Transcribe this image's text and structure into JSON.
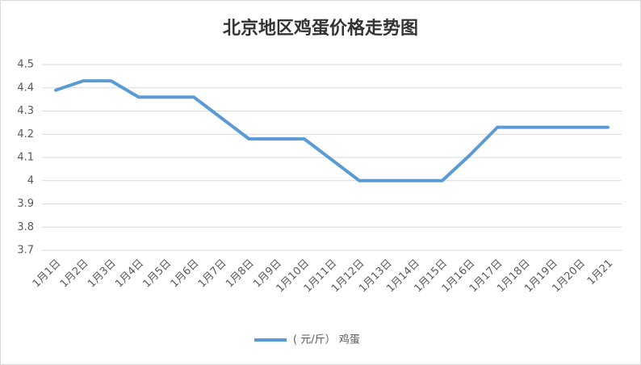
{
  "chart_data": {
    "type": "line",
    "title": "北京地区鸡蛋价格走势图",
    "categories": [
      "1月1日",
      "1月2日",
      "1月3日",
      "1月4日",
      "1月5日",
      "1月6日",
      "1月7日",
      "1月8日",
      "1月9日",
      "1月10日",
      "1月11日",
      "1月12日",
      "1月13日",
      "1月14日",
      "1月15日",
      "1月16日",
      "1月17日",
      "1月18日",
      "1月19日",
      "1月20日",
      "1月21"
    ],
    "series": [
      {
        "name": "( 元/斤） 鸡蛋",
        "color": "#5b9bd5",
        "values": [
          4.39,
          4.43,
          4.43,
          4.36,
          4.36,
          4.36,
          4.27,
          4.18,
          4.18,
          4.18,
          4.09,
          4.0,
          4.0,
          4.0,
          4.0,
          4.11,
          4.23,
          4.23,
          4.23,
          4.23,
          4.23
        ]
      }
    ],
    "ylim": [
      3.7,
      4.5
    ],
    "yticks": [
      3.7,
      3.8,
      3.9,
      4,
      4.1,
      4.2,
      4.3,
      4.4,
      4.5
    ],
    "grid": true,
    "legend": "bottom"
  }
}
